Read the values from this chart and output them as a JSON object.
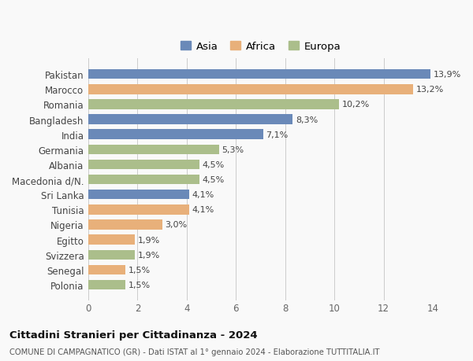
{
  "countries": [
    "Pakistan",
    "Marocco",
    "Romania",
    "Bangladesh",
    "India",
    "Germania",
    "Albania",
    "Macedonia d/N.",
    "Sri Lanka",
    "Tunisia",
    "Nigeria",
    "Egitto",
    "Svizzera",
    "Senegal",
    "Polonia"
  ],
  "values": [
    13.9,
    13.2,
    10.2,
    8.3,
    7.1,
    5.3,
    4.5,
    4.5,
    4.1,
    4.1,
    3.0,
    1.9,
    1.9,
    1.5,
    1.5
  ],
  "labels": [
    "13,9%",
    "13,2%",
    "10,2%",
    "8,3%",
    "7,1%",
    "5,3%",
    "4,5%",
    "4,5%",
    "4,1%",
    "4,1%",
    "3,0%",
    "1,9%",
    "1,9%",
    "1,5%",
    "1,5%"
  ],
  "continents": [
    "Asia",
    "Africa",
    "Europa",
    "Asia",
    "Asia",
    "Europa",
    "Europa",
    "Europa",
    "Asia",
    "Africa",
    "Africa",
    "Africa",
    "Europa",
    "Africa",
    "Europa"
  ],
  "colors": {
    "Asia": "#6A89B8",
    "Africa": "#E8B07A",
    "Europa": "#ABBE8B"
  },
  "xlim": [
    0,
    14
  ],
  "xticks": [
    0,
    2,
    4,
    6,
    8,
    10,
    12,
    14
  ],
  "title": "Cittadini Stranieri per Cittadinanza - 2024",
  "subtitle": "COMUNE DI CAMPAGNATICO (GR) - Dati ISTAT al 1° gennaio 2024 - Elaborazione TUTTITALIA.IT",
  "background_color": "#f9f9f9",
  "grid_color": "#cccccc",
  "bar_height": 0.65
}
